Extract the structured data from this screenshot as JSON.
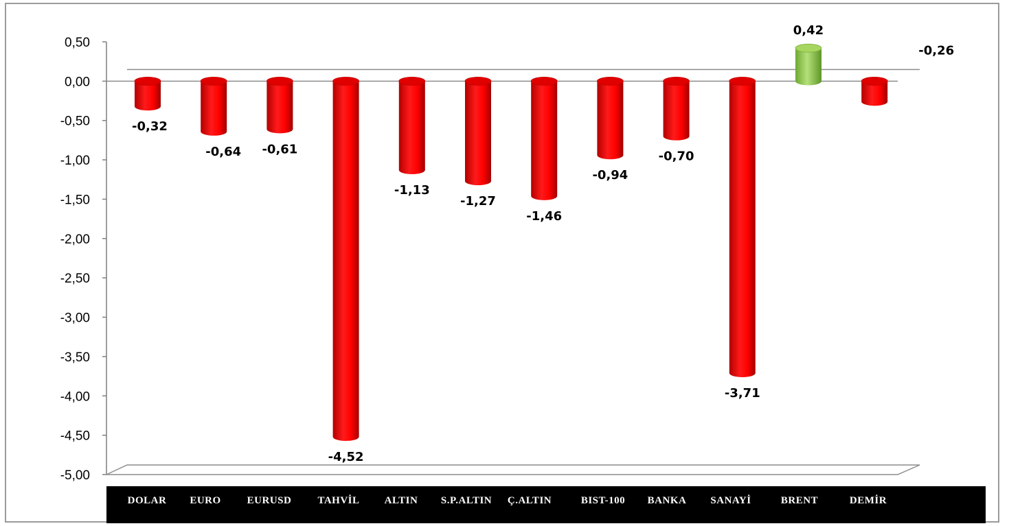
{
  "chart_data": {
    "type": "bar",
    "title": "",
    "xlabel": "",
    "ylabel": "",
    "categories": [
      "DOLAR",
      "EURO",
      "EURUSD",
      "TAHVİL",
      "ALTIN",
      "S.P.ALTIN",
      "Ç.ALTIN",
      "BIST-100",
      "BANKA",
      "SANAYİ",
      "BRENT",
      "DEMİR"
    ],
    "values": [
      -0.32,
      -0.64,
      -0.61,
      -4.52,
      -1.13,
      -1.27,
      -1.46,
      -0.94,
      -0.7,
      -3.71,
      0.42,
      -0.26
    ],
    "value_labels": [
      "-0,32",
      "-0,64",
      "-0,61",
      "-4,52",
      "-1,13",
      "-1,27",
      "-1,46",
      "-0,94",
      "-0,70",
      "-3,71",
      "0,42",
      "-0,26"
    ],
    "y_ticks": [
      0.5,
      0,
      -0.5,
      -1,
      -1.5,
      -2,
      -2.5,
      -3,
      -3.5,
      -4,
      -4.5,
      -5
    ],
    "y_tick_labels": [
      "0,50",
      "0,00",
      "-0,50",
      "-1,00",
      "-1,50",
      "-2,00",
      "-2,50",
      "-3,00",
      "-3,50",
      "-4,00",
      "-4,50",
      "-5,00"
    ],
    "ylim": [
      -5,
      0.5
    ],
    "grid": false,
    "legend": "none",
    "colors": {
      "negative": "#ff0000",
      "positive": "#92d050",
      "category_band": "#000000",
      "category_text": "#ffffff"
    }
  }
}
